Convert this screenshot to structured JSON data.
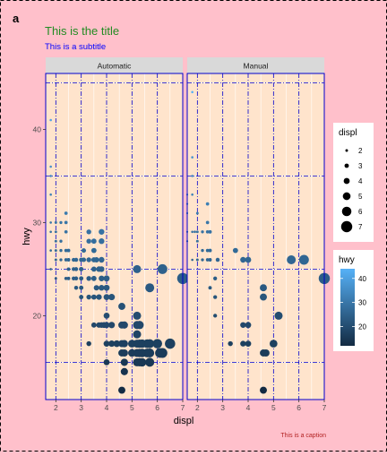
{
  "figure": {
    "tag": "a",
    "title": "This is the title",
    "subtitle": "This is a subtitle",
    "caption": "This is a caption",
    "colors": {
      "background": "#ffc0cb",
      "panel": "#ffe4cc",
      "strip": "#d9d9d9",
      "title": "#228b22",
      "subtitle": "#0000ff",
      "caption": "#b22222",
      "panel_border": "#0000cd",
      "major_grid": "#0000cd",
      "minor_grid": "#ffffff",
      "point_low": "#132b43",
      "point_high": "#56b1f7"
    }
  },
  "chart_data": {
    "type": "scatter",
    "x": "displ",
    "y": "hwy",
    "xlabel": "displ",
    "ylabel": "hwy",
    "xlim": [
      1.6,
      7.0
    ],
    "ylim": [
      11,
      46
    ],
    "x_ticks": [
      2,
      3,
      4,
      5,
      6,
      7
    ],
    "y_ticks": [
      20,
      30,
      40
    ],
    "dashed_major_y": [
      15,
      25,
      35,
      45
    ],
    "facets": [
      "Automatic",
      "Manual"
    ],
    "size_mapping": "displ",
    "color_mapping": "hwy",
    "panels": [
      {
        "facet": "Automatic",
        "points": [
          [
            1.8,
            41
          ],
          [
            1.8,
            36
          ],
          [
            1.8,
            35
          ],
          [
            1.8,
            33
          ],
          [
            1.8,
            30
          ],
          [
            1.8,
            29
          ],
          [
            1.8,
            27
          ],
          [
            1.8,
            25
          ],
          [
            2.0,
            30
          ],
          [
            2.0,
            29
          ],
          [
            2.0,
            28
          ],
          [
            2.0,
            27
          ],
          [
            2.0,
            26
          ],
          [
            2.0,
            24
          ],
          [
            2.2,
            30
          ],
          [
            2.2,
            28
          ],
          [
            2.2,
            27
          ],
          [
            2.2,
            26
          ],
          [
            2.4,
            31
          ],
          [
            2.4,
            30
          ],
          [
            2.4,
            29
          ],
          [
            2.4,
            27
          ],
          [
            2.4,
            26
          ],
          [
            2.4,
            24
          ],
          [
            2.5,
            27
          ],
          [
            2.5,
            26
          ],
          [
            2.5,
            25
          ],
          [
            2.5,
            24
          ],
          [
            2.7,
            26
          ],
          [
            2.7,
            25
          ],
          [
            2.7,
            24
          ],
          [
            2.8,
            26
          ],
          [
            2.8,
            25
          ],
          [
            2.8,
            24
          ],
          [
            2.8,
            23
          ],
          [
            3.0,
            26
          ],
          [
            3.0,
            25
          ],
          [
            3.0,
            24
          ],
          [
            3.0,
            23
          ],
          [
            3.0,
            22
          ],
          [
            3.1,
            27
          ],
          [
            3.1,
            26
          ],
          [
            3.3,
            29
          ],
          [
            3.3,
            28
          ],
          [
            3.3,
            26
          ],
          [
            3.3,
            24
          ],
          [
            3.3,
            22
          ],
          [
            3.3,
            17
          ],
          [
            3.5,
            28
          ],
          [
            3.5,
            27
          ],
          [
            3.5,
            26
          ],
          [
            3.5,
            25
          ],
          [
            3.5,
            24
          ],
          [
            3.5,
            22
          ],
          [
            3.5,
            19
          ],
          [
            3.6,
            26
          ],
          [
            3.6,
            23
          ],
          [
            3.7,
            25
          ],
          [
            3.7,
            22
          ],
          [
            3.7,
            19
          ],
          [
            3.8,
            29
          ],
          [
            3.8,
            28
          ],
          [
            3.8,
            26
          ],
          [
            3.8,
            25
          ],
          [
            3.8,
            24
          ],
          [
            3.8,
            23
          ],
          [
            3.8,
            19
          ],
          [
            3.9,
            19
          ],
          [
            4.0,
            24
          ],
          [
            4.0,
            23
          ],
          [
            4.0,
            22
          ],
          [
            4.0,
            20
          ],
          [
            4.0,
            19
          ],
          [
            4.0,
            17
          ],
          [
            4.0,
            15
          ],
          [
            4.2,
            22
          ],
          [
            4.2,
            19
          ],
          [
            4.2,
            17
          ],
          [
            4.4,
            17
          ],
          [
            4.6,
            21
          ],
          [
            4.6,
            19
          ],
          [
            4.6,
            17
          ],
          [
            4.6,
            16
          ],
          [
            4.6,
            12
          ],
          [
            4.7,
            19
          ],
          [
            4.7,
            17
          ],
          [
            4.7,
            16
          ],
          [
            4.7,
            15
          ],
          [
            4.7,
            14
          ],
          [
            5.0,
            17
          ],
          [
            5.0,
            16
          ],
          [
            5.2,
            25
          ],
          [
            5.2,
            20
          ],
          [
            5.2,
            19
          ],
          [
            5.2,
            18
          ],
          [
            5.2,
            17
          ],
          [
            5.2,
            16
          ],
          [
            5.2,
            15
          ],
          [
            5.3,
            19
          ],
          [
            5.3,
            17
          ],
          [
            5.3,
            16
          ],
          [
            5.3,
            15
          ],
          [
            5.4,
            17
          ],
          [
            5.4,
            16
          ],
          [
            5.4,
            15
          ],
          [
            5.6,
            17
          ],
          [
            5.6,
            16
          ],
          [
            5.7,
            23
          ],
          [
            5.7,
            17
          ],
          [
            5.7,
            16
          ],
          [
            5.7,
            15
          ],
          [
            6.0,
            17
          ],
          [
            6.1,
            16
          ],
          [
            6.2,
            25
          ],
          [
            6.2,
            16
          ],
          [
            6.5,
            17
          ],
          [
            7.0,
            24
          ]
        ]
      },
      {
        "facet": "Manual",
        "points": [
          [
            1.6,
            33
          ],
          [
            1.6,
            32
          ],
          [
            1.6,
            31
          ],
          [
            1.6,
            29
          ],
          [
            1.6,
            28
          ],
          [
            1.8,
            44
          ],
          [
            1.8,
            37
          ],
          [
            1.8,
            35
          ],
          [
            1.8,
            33
          ],
          [
            1.8,
            29
          ],
          [
            1.8,
            26
          ],
          [
            1.9,
            29
          ],
          [
            2.0,
            31
          ],
          [
            2.0,
            29
          ],
          [
            2.0,
            28
          ],
          [
            2.0,
            26
          ],
          [
            2.2,
            29
          ],
          [
            2.2,
            27
          ],
          [
            2.2,
            26
          ],
          [
            2.4,
            32
          ],
          [
            2.4,
            30
          ],
          [
            2.4,
            29
          ],
          [
            2.4,
            27
          ],
          [
            2.4,
            26
          ],
          [
            2.5,
            29
          ],
          [
            2.5,
            27
          ],
          [
            2.5,
            26
          ],
          [
            2.5,
            23
          ],
          [
            2.7,
            24
          ],
          [
            2.7,
            22
          ],
          [
            2.7,
            20
          ],
          [
            2.8,
            26
          ],
          [
            3.3,
            17
          ],
          [
            3.5,
            27
          ],
          [
            3.8,
            26
          ],
          [
            3.8,
            19
          ],
          [
            3.8,
            17
          ],
          [
            4.0,
            26
          ],
          [
            4.0,
            19
          ],
          [
            4.0,
            17
          ],
          [
            4.6,
            23
          ],
          [
            4.6,
            22
          ],
          [
            4.6,
            16
          ],
          [
            4.6,
            12
          ],
          [
            4.7,
            16
          ],
          [
            5.0,
            17
          ],
          [
            5.2,
            20
          ],
          [
            5.7,
            26
          ],
          [
            6.2,
            26
          ],
          [
            7.0,
            24
          ]
        ]
      }
    ],
    "legend": {
      "placement": "right",
      "size": {
        "title": "displ",
        "breaks": [
          2,
          3,
          4,
          5,
          6,
          7
        ]
      },
      "color": {
        "title": "hwy",
        "breaks": [
          20,
          30,
          40
        ],
        "limits": [
          12,
          44
        ]
      }
    }
  }
}
